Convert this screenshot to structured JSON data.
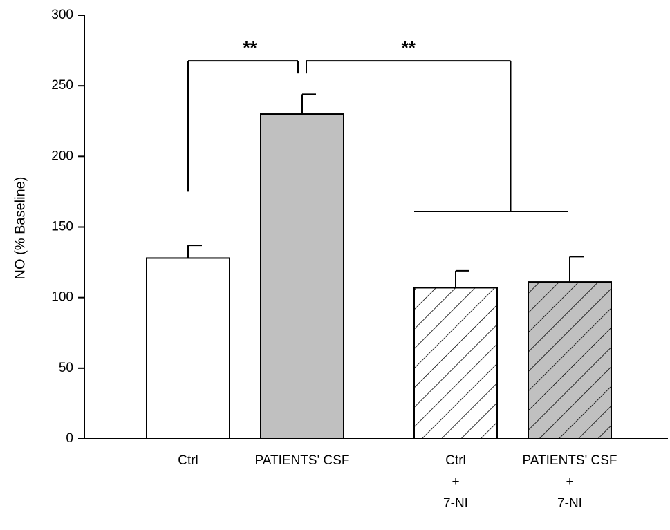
{
  "chart_data": {
    "type": "bar",
    "ylabel": "NO (% Baseline)",
    "xlabel": "",
    "ylim": [
      0,
      300
    ],
    "yticks": [
      0,
      50,
      100,
      150,
      200,
      250,
      300
    ],
    "categories": [
      [
        "Ctrl"
      ],
      [
        "PATIENTS' CSF"
      ],
      [
        "Ctrl",
        "+",
        "7-NI"
      ],
      [
        "PATIENTS' CSF",
        "+",
        "7-NI"
      ]
    ],
    "values": [
      128,
      230,
      107,
      111
    ],
    "errors": [
      9,
      14,
      12,
      18
    ],
    "bar_styles": [
      {
        "fill": "#ffffff",
        "hatch": false
      },
      {
        "fill": "#c0c0c0",
        "hatch": false
      },
      {
        "fill": "#ffffff",
        "hatch": true
      },
      {
        "fill": "#c0c0c0",
        "hatch": true
      }
    ],
    "significance": [
      {
        "label": "**",
        "between": "Ctrl vs PATIENTS' CSF"
      },
      {
        "label": "**",
        "between": "PATIENTS' CSF vs 7-NI groups"
      }
    ]
  }
}
